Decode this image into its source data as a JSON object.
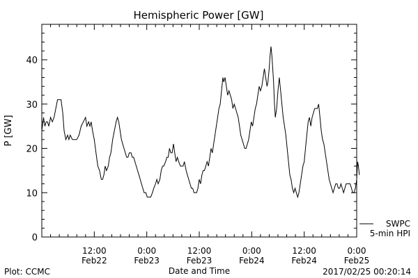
{
  "chart_data": {
    "type": "line",
    "title": "Hemispheric Power [GW]",
    "xlabel": "Date and Time",
    "ylabel": "P [GW]",
    "ylim": [
      0,
      48
    ],
    "xlim_hours": [
      0,
      72
    ],
    "yticks": [
      0,
      10,
      20,
      30,
      40
    ],
    "xticks": [
      {
        "hour": 12,
        "line1": "12:00",
        "line2": "Feb22"
      },
      {
        "hour": 24,
        "line1": "0:00",
        "line2": "Feb23"
      },
      {
        "hour": 36,
        "line1": "12:00",
        "line2": "Feb23"
      },
      {
        "hour": 48,
        "line1": "0:00",
        "line2": "Feb24"
      },
      {
        "hour": 60,
        "line1": "12:00",
        "line2": "Feb24"
      },
      {
        "hour": 72,
        "line1": "0:00",
        "line2": "Feb25"
      }
    ],
    "series": [
      {
        "name": "5-min HPI",
        "source": "SWPC",
        "color": "#000000",
        "points": [
          [
            0.0,
            24
          ],
          [
            0.4,
            27
          ],
          [
            0.7,
            25
          ],
          [
            1.0,
            26
          ],
          [
            1.3,
            26
          ],
          [
            1.6,
            25
          ],
          [
            2.0,
            27
          ],
          [
            2.4,
            26
          ],
          [
            2.8,
            27
          ],
          [
            3.2,
            29
          ],
          [
            3.6,
            31
          ],
          [
            4.0,
            31
          ],
          [
            4.4,
            31
          ],
          [
            4.8,
            28
          ],
          [
            5.1,
            24
          ],
          [
            5.5,
            22
          ],
          [
            5.9,
            23
          ],
          [
            6.2,
            22
          ],
          [
            6.5,
            23
          ],
          [
            7.0,
            22
          ],
          [
            7.5,
            22
          ],
          [
            8.0,
            22
          ],
          [
            8.5,
            23
          ],
          [
            9.0,
            25
          ],
          [
            9.5,
            26
          ],
          [
            10.0,
            27
          ],
          [
            10.3,
            25
          ],
          [
            10.7,
            26
          ],
          [
            11.0,
            25
          ],
          [
            11.3,
            26
          ],
          [
            11.6,
            24
          ],
          [
            12.0,
            22
          ],
          [
            12.4,
            19
          ],
          [
            12.8,
            16
          ],
          [
            13.2,
            15
          ],
          [
            13.6,
            13
          ],
          [
            13.9,
            13
          ],
          [
            14.2,
            14
          ],
          [
            14.5,
            16
          ],
          [
            14.8,
            15
          ],
          [
            15.2,
            16
          ],
          [
            15.5,
            18
          ],
          [
            15.8,
            19
          ],
          [
            16.2,
            22
          ],
          [
            16.6,
            24
          ],
          [
            17.0,
            26
          ],
          [
            17.3,
            27
          ],
          [
            17.6,
            26
          ],
          [
            17.9,
            24
          ],
          [
            18.2,
            22
          ],
          [
            18.5,
            21
          ],
          [
            18.8,
            20
          ],
          [
            19.1,
            19
          ],
          [
            19.4,
            18
          ],
          [
            19.7,
            18
          ],
          [
            20.0,
            19
          ],
          [
            20.4,
            19
          ],
          [
            20.7,
            18
          ],
          [
            21.0,
            18
          ],
          [
            21.3,
            17
          ],
          [
            21.6,
            16
          ],
          [
            21.9,
            15
          ],
          [
            22.2,
            14
          ],
          [
            22.5,
            13
          ],
          [
            22.8,
            12
          ],
          [
            23.1,
            11
          ],
          [
            23.4,
            10
          ],
          [
            23.8,
            10
          ],
          [
            24.1,
            9
          ],
          [
            24.5,
            9
          ],
          [
            24.9,
            9
          ],
          [
            25.3,
            10
          ],
          [
            25.6,
            11
          ],
          [
            26.0,
            12
          ],
          [
            26.3,
            13
          ],
          [
            26.6,
            12
          ],
          [
            27.0,
            13
          ],
          [
            27.3,
            15
          ],
          [
            27.6,
            16
          ],
          [
            27.9,
            16
          ],
          [
            28.3,
            17
          ],
          [
            28.6,
            18
          ],
          [
            28.9,
            18
          ],
          [
            29.2,
            20
          ],
          [
            29.5,
            19
          ],
          [
            29.8,
            19
          ],
          [
            30.1,
            21
          ],
          [
            30.4,
            19
          ],
          [
            30.7,
            17
          ],
          [
            31.0,
            18
          ],
          [
            31.3,
            17
          ],
          [
            31.7,
            16
          ],
          [
            32.0,
            16
          ],
          [
            32.3,
            16
          ],
          [
            32.6,
            17
          ],
          [
            33.0,
            15
          ],
          [
            33.3,
            14
          ],
          [
            33.6,
            13
          ],
          [
            33.9,
            12
          ],
          [
            34.2,
            11
          ],
          [
            34.5,
            11
          ],
          [
            34.8,
            10
          ],
          [
            35.1,
            10
          ],
          [
            35.4,
            10
          ],
          [
            35.7,
            11
          ],
          [
            36.0,
            13
          ],
          [
            36.3,
            12
          ],
          [
            36.6,
            14
          ],
          [
            36.9,
            15
          ],
          [
            37.2,
            15
          ],
          [
            37.5,
            16
          ],
          [
            37.8,
            17
          ],
          [
            38.1,
            16
          ],
          [
            38.4,
            18
          ],
          [
            38.7,
            20
          ],
          [
            39.0,
            19
          ],
          [
            39.3,
            21
          ],
          [
            39.6,
            23
          ],
          [
            39.9,
            25
          ],
          [
            40.2,
            27
          ],
          [
            40.5,
            29
          ],
          [
            40.8,
            30
          ],
          [
            41.1,
            33
          ],
          [
            41.4,
            36
          ],
          [
            41.6,
            35
          ],
          [
            41.9,
            36
          ],
          [
            42.2,
            34
          ],
          [
            42.5,
            32
          ],
          [
            42.8,
            33
          ],
          [
            43.1,
            32
          ],
          [
            43.4,
            31
          ],
          [
            43.7,
            29
          ],
          [
            44.0,
            30
          ],
          [
            44.3,
            29
          ],
          [
            44.6,
            28
          ],
          [
            44.9,
            27
          ],
          [
            45.2,
            25
          ],
          [
            45.5,
            23
          ],
          [
            45.8,
            22
          ],
          [
            46.1,
            21
          ],
          [
            46.4,
            20
          ],
          [
            46.7,
            20
          ],
          [
            47.0,
            21
          ],
          [
            47.3,
            22
          ],
          [
            47.6,
            24
          ],
          [
            47.9,
            26
          ],
          [
            48.2,
            25
          ],
          [
            48.5,
            27
          ],
          [
            48.8,
            29
          ],
          [
            49.1,
            30
          ],
          [
            49.4,
            32
          ],
          [
            49.7,
            34
          ],
          [
            50.0,
            33
          ],
          [
            50.3,
            34
          ],
          [
            50.6,
            36
          ],
          [
            50.9,
            38
          ],
          [
            51.2,
            36
          ],
          [
            51.5,
            34
          ],
          [
            51.7,
            35
          ],
          [
            52.0,
            38
          ],
          [
            52.2,
            41
          ],
          [
            52.4,
            43
          ],
          [
            52.6,
            41
          ],
          [
            52.8,
            38
          ],
          [
            53.0,
            35
          ],
          [
            53.2,
            30
          ],
          [
            53.4,
            27
          ],
          [
            53.7,
            29
          ],
          [
            54.0,
            33
          ],
          [
            54.3,
            36
          ],
          [
            54.6,
            33
          ],
          [
            54.9,
            30
          ],
          [
            55.2,
            27
          ],
          [
            55.5,
            25
          ],
          [
            55.8,
            23
          ],
          [
            56.1,
            20
          ],
          [
            56.4,
            17
          ],
          [
            56.7,
            14
          ],
          [
            57.0,
            13
          ],
          [
            57.3,
            11
          ],
          [
            57.6,
            10
          ],
          [
            57.9,
            11
          ],
          [
            58.2,
            10
          ],
          [
            58.5,
            9
          ],
          [
            58.8,
            10
          ],
          [
            59.1,
            12
          ],
          [
            59.4,
            14
          ],
          [
            59.7,
            16
          ],
          [
            60.0,
            17
          ],
          [
            60.3,
            20
          ],
          [
            60.6,
            23
          ],
          [
            60.9,
            26
          ],
          [
            61.2,
            27
          ],
          [
            61.5,
            25
          ],
          [
            61.8,
            27
          ],
          [
            62.1,
            28
          ],
          [
            62.4,
            29
          ],
          [
            62.7,
            29
          ],
          [
            63.0,
            29
          ],
          [
            63.3,
            30
          ],
          [
            63.6,
            27
          ],
          [
            63.9,
            24
          ],
          [
            64.2,
            22
          ],
          [
            64.5,
            21
          ],
          [
            64.8,
            19
          ],
          [
            65.1,
            17
          ],
          [
            65.4,
            15
          ],
          [
            65.7,
            13
          ],
          [
            66.0,
            12
          ],
          [
            66.3,
            11
          ],
          [
            66.6,
            10
          ],
          [
            66.9,
            11
          ],
          [
            67.2,
            12
          ],
          [
            67.5,
            12
          ],
          [
            67.8,
            11
          ],
          [
            68.1,
            11
          ],
          [
            68.4,
            12
          ],
          [
            68.7,
            11
          ],
          [
            69.0,
            10
          ],
          [
            69.3,
            11
          ],
          [
            69.6,
            12
          ],
          [
            69.9,
            12
          ],
          [
            70.2,
            12
          ],
          [
            70.5,
            12
          ],
          [
            70.8,
            11
          ],
          [
            71.1,
            10
          ],
          [
            71.4,
            10
          ],
          [
            71.7,
            11
          ],
          [
            72.0,
            13
          ],
          [
            72.2,
            17
          ],
          [
            72.4,
            16
          ],
          [
            72.6,
            14
          ]
        ]
      }
    ],
    "grid": false,
    "legend_position": "bottom-right"
  },
  "footer": {
    "plot_credit": "Plot: CCMC",
    "timestamp": "2017/02/25 00:20:14"
  }
}
